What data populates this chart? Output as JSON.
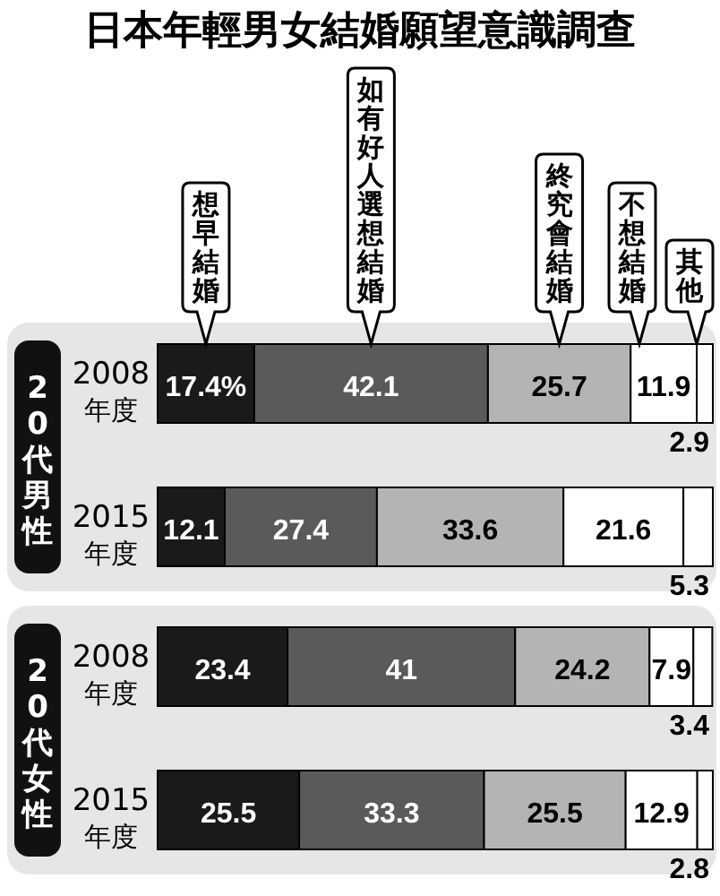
{
  "chart_data": [
    {
      "type": "bar",
      "orientation": "horizontal",
      "stacked": true,
      "title": "日本年輕男女結婚願望意識調查",
      "ylabel": "20代男性",
      "categories": [
        "2008年度",
        "2015年度"
      ],
      "xlim": [
        0,
        100
      ],
      "data_labels": true,
      "series": [
        {
          "name": "想早結婚",
          "color": "#1a1a1a",
          "values": [
            17.4,
            12.1
          ],
          "value_labels": [
            "17.4%",
            "12.1"
          ]
        },
        {
          "name": "如有好人選想結婚",
          "color": "#5a5a5a",
          "values": [
            42.1,
            27.4
          ]
        },
        {
          "name": "終究會結婚",
          "color": "#b4b4b4",
          "values": [
            25.7,
            33.6
          ]
        },
        {
          "name": "不想結婚",
          "color": "#ffffff",
          "values": [
            11.9,
            21.6
          ]
        },
        {
          "name": "其他",
          "color": "#ffffff",
          "values": [
            2.9,
            5.3
          ]
        }
      ]
    },
    {
      "type": "bar",
      "orientation": "horizontal",
      "stacked": true,
      "ylabel": "20代女性",
      "categories": [
        "2008年度",
        "2015年度"
      ],
      "xlim": [
        0,
        100
      ],
      "data_labels": true,
      "series": [
        {
          "color": "#1a1a1a",
          "values": [
            23.4,
            25.5
          ]
        },
        {
          "color": "#5a5a5a",
          "values": [
            41,
            33.3
          ]
        },
        {
          "color": "#b4b4b4",
          "values": [
            24.2,
            25.5
          ]
        },
        {
          "color": "#ffffff",
          "values": [
            7.9,
            12.9
          ]
        },
        {
          "color": "#ffffff",
          "values": [
            3.4,
            2.8
          ]
        }
      ]
    }
  ]
}
